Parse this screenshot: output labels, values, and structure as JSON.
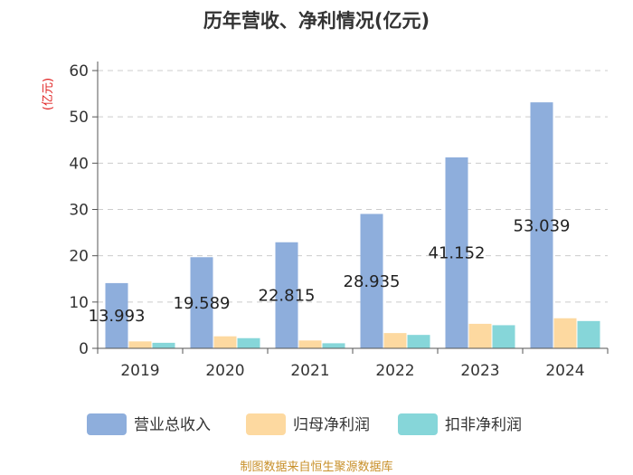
{
  "chart_data": {
    "type": "bar",
    "title": "历年营收、净利情况(亿元)",
    "ylabel": "(亿元)",
    "xlabel": "",
    "ylim": [
      0,
      60
    ],
    "yticks": [
      0,
      10,
      20,
      30,
      40,
      50,
      60
    ],
    "categories": [
      "2019",
      "2020",
      "2021",
      "2022",
      "2023",
      "2024"
    ],
    "series": [
      {
        "name": "营业总收入",
        "color": "#8eaedc",
        "values": [
          13.993,
          19.589,
          22.815,
          28.935,
          41.152,
          53.039
        ]
      },
      {
        "name": "归母净利润",
        "color": "#fdd9a0",
        "values": [
          1.4,
          2.5,
          1.6,
          3.2,
          5.2,
          6.4
        ]
      },
      {
        "name": "扣非净利润",
        "color": "#86d6d9",
        "values": [
          1.1,
          2.1,
          1.0,
          2.8,
          4.9,
          5.8
        ]
      }
    ],
    "data_labels": [
      "13.993",
      "19.589",
      "22.815",
      "28.935",
      "41.152",
      "53.039"
    ],
    "grid": true,
    "legend_position": "bottom"
  },
  "source": "制图数据来自恒生聚源数据库"
}
